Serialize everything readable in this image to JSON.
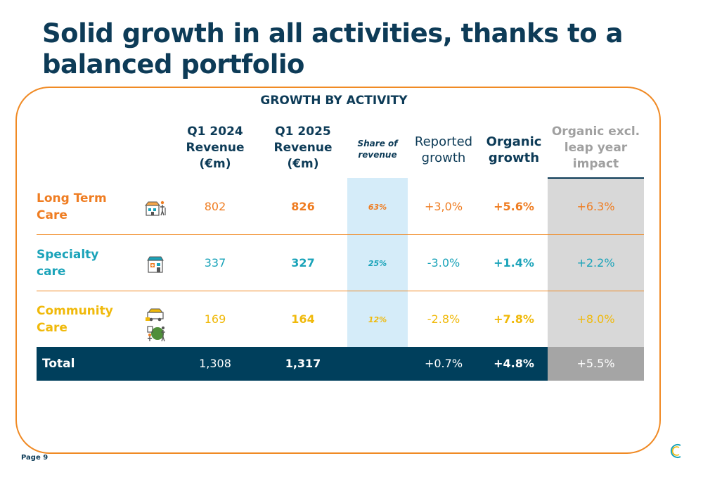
{
  "title": "Solid growth in all activities, thanks to a balanced portfolio",
  "heading": "GROWTH BY ACTIVITY",
  "columns": {
    "q1_2024": [
      "Q1 2024",
      "Revenue",
      "(€m)"
    ],
    "q1_2025": [
      "Q1 2025",
      "Revenue",
      "(€m)"
    ],
    "share": [
      "Share of",
      "revenue"
    ],
    "reported": [
      "Reported",
      "growth"
    ],
    "organic": [
      "Organic",
      "growth"
    ],
    "excl": [
      "Organic excl.",
      "leap year",
      "impact"
    ]
  },
  "rows": [
    {
      "label": [
        "Long Term",
        "Care"
      ],
      "icon": "nursing-home-icon",
      "q1_2024": "802",
      "q1_2025": "826",
      "share": "63%",
      "reported": "+3,0%",
      "organic": "+5.6%",
      "excl": "+6.3%",
      "color": "#ef7d22"
    },
    {
      "label": [
        "Specialty",
        "care"
      ],
      "icon": "clinic-building-icon",
      "q1_2024": "337",
      "q1_2025": "327",
      "share": "25%",
      "reported": "-3.0%",
      "organic": "+1.4%",
      "excl": "+2.2%",
      "color": "#1aa3b9"
    },
    {
      "label": [
        "Community",
        "Care"
      ],
      "icon": "home-care-icon",
      "q1_2024": "169",
      "q1_2025": "164",
      "share": "12%",
      "reported": "-2.8%",
      "organic": "+7.8%",
      "excl": "+8.0%",
      "color": "#f0b90a"
    }
  ],
  "total": {
    "label": "Total",
    "q1_2024": "1,308",
    "q1_2025": "1,317",
    "reported": "+0.7%",
    "organic": "+4.8%",
    "excl": "+5.5%"
  },
  "page": "Page 9",
  "colors": {
    "navy": "#0d3b57",
    "orange": "#ef7d22",
    "teal": "#1aa3b9",
    "yellow": "#f0b90a",
    "share_bg": "#d5ecf9",
    "excl_bg": "#d8d8d8"
  }
}
